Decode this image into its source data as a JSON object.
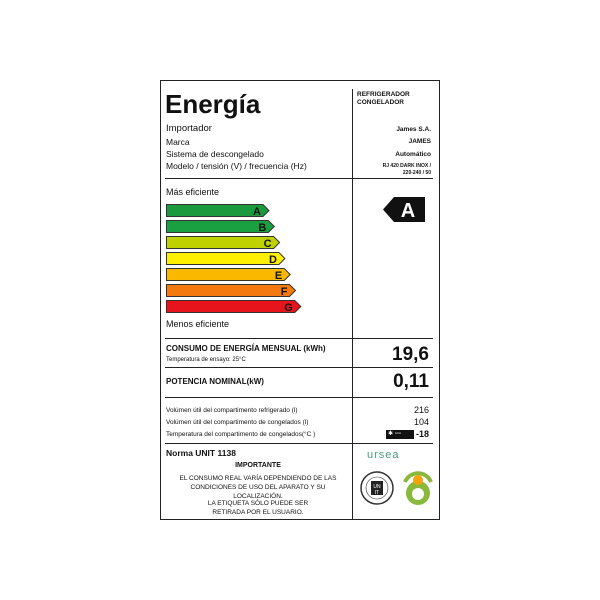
{
  "header": {
    "title": "Energía",
    "product_type": [
      "REFRIGERADOR",
      "CONGELADOR"
    ]
  },
  "info": [
    {
      "label": "Importador",
      "value": "James S.A."
    },
    {
      "label": "Marca",
      "value": "JAMES"
    },
    {
      "label": "Sistema de descongelado",
      "value": "Automático"
    },
    {
      "label": "Modelo / tensión (V) / frecuencia (Hz)",
      "value": [
        "RJ 420 DARK INOX /",
        "220-240 / 50"
      ]
    }
  ],
  "scale": {
    "top_label": "Más eficiente",
    "bottom_label": "Menos eficiente",
    "classes": [
      {
        "letter": "A",
        "color": "#1a9a3c"
      },
      {
        "letter": "B",
        "color": "#1aa040"
      },
      {
        "letter": "C",
        "color": "#bfd200"
      },
      {
        "letter": "D",
        "color": "#fff000"
      },
      {
        "letter": "E",
        "color": "#fbb800"
      },
      {
        "letter": "F",
        "color": "#f47a10"
      },
      {
        "letter": "G",
        "color": "#e8141b"
      }
    ],
    "rating": "A"
  },
  "consumption": {
    "label": "CONSUMO DE ENERGÍA MENSUAL (kWh)",
    "sub": "Temperatura de ensayo: 25°C",
    "value": "19,6"
  },
  "power": {
    "label": "POTENCIA NOMINAL(kW)",
    "value": "0,11"
  },
  "specs": [
    {
      "label": "Volúmen útil del compartimento refrigerado (l)",
      "value": "216"
    },
    {
      "label": "Volúmen útil del compartimento de congelados (l)",
      "value": "104"
    },
    {
      "label": "Temperatura del compartimento de congelados(°C )",
      "value": "-18",
      "icon": "freezer-stars-icon"
    }
  ],
  "footer": {
    "norma": "Norma UNIT 1138",
    "important": "IMPORTANTE",
    "note1": "EL CONSUMO REAL VARÍA DEPENDIENDO DE LAS CONDICIONES DE USO DEL APARATO Y SU LOCALIZACIÓN.",
    "note2": "LA ETIQUETA SÓLO PUEDE SER RETIRADA POR EL USUARIO.",
    "logo_ursea": "ursea",
    "logo_unit": "UNIT",
    "logo_eficiencia": "EFICIENCIA ENERGÉTICA"
  }
}
